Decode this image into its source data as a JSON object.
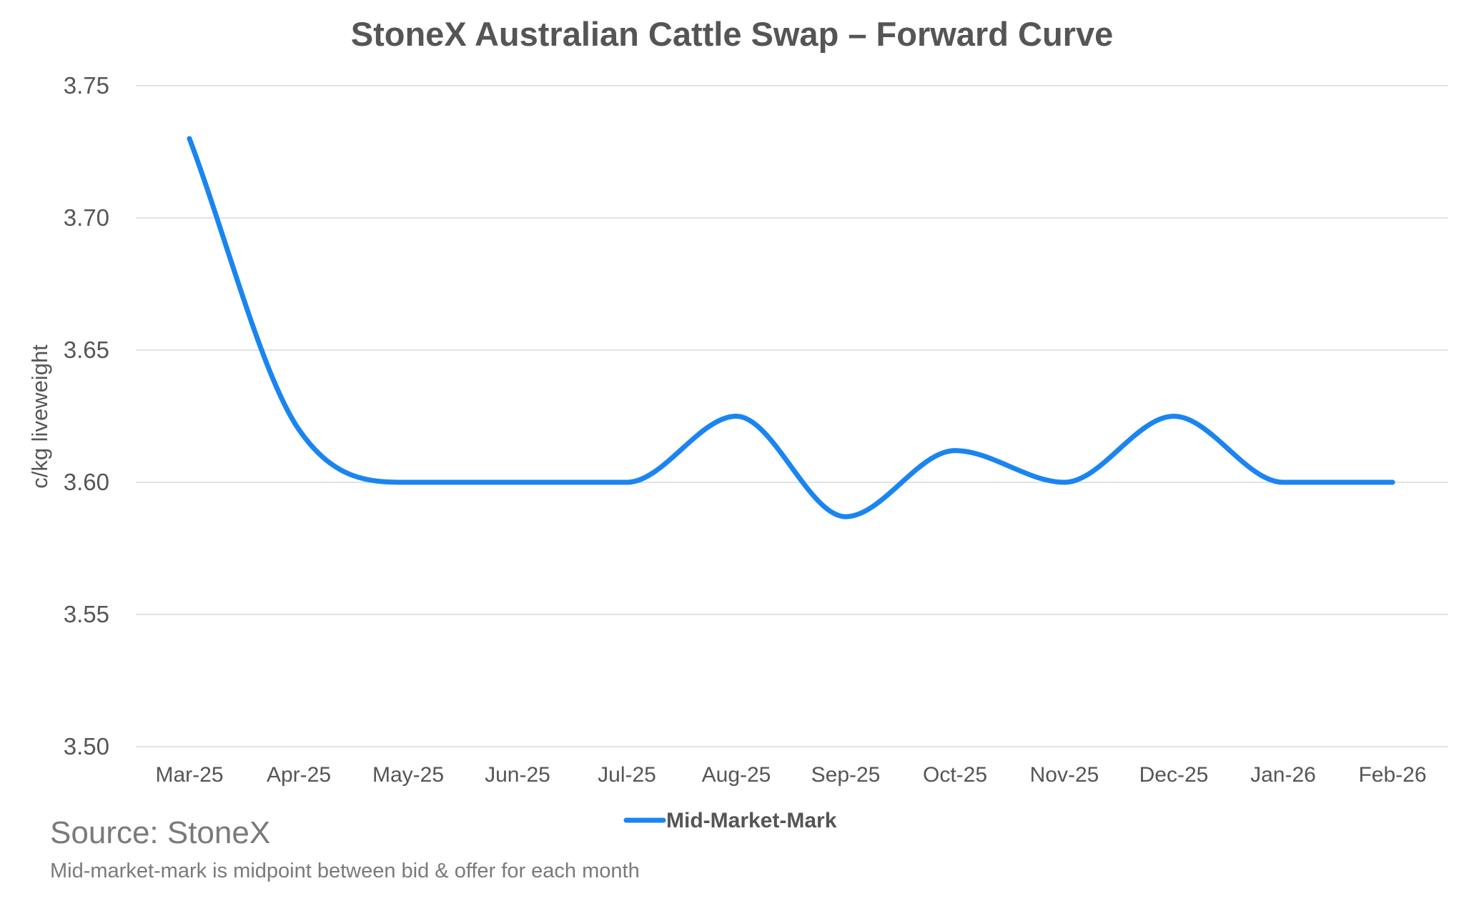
{
  "chart_data": {
    "type": "line",
    "title": "StoneX Australian Cattle Swap – Forward Curve",
    "ylabel": "c/kg liveweight",
    "xlabel": "",
    "categories": [
      "Mar-25",
      "Apr-25",
      "May-25",
      "Jun-25",
      "Jul-25",
      "Aug-25",
      "Sep-25",
      "Oct-25",
      "Nov-25",
      "Dec-25",
      "Jan-26",
      "Feb-26"
    ],
    "series": [
      {
        "name": "Mid-Market-Mark",
        "values": [
          3.73,
          3.62,
          3.6,
          3.6,
          3.6,
          3.625,
          3.587,
          3.612,
          3.6,
          3.625,
          3.6,
          3.6
        ],
        "color": "#1a85f0"
      }
    ],
    "ylim": [
      3.5,
      3.75
    ],
    "yticks": [
      "3.50",
      "3.55",
      "3.60",
      "3.65",
      "3.70",
      "3.75"
    ],
    "grid": true,
    "legend_position": "bottom-center",
    "line_style": "smooth"
  },
  "footer": {
    "source": "Source: StoneX",
    "note": "Mid-market-mark is midpoint between bid & offer for each month"
  }
}
